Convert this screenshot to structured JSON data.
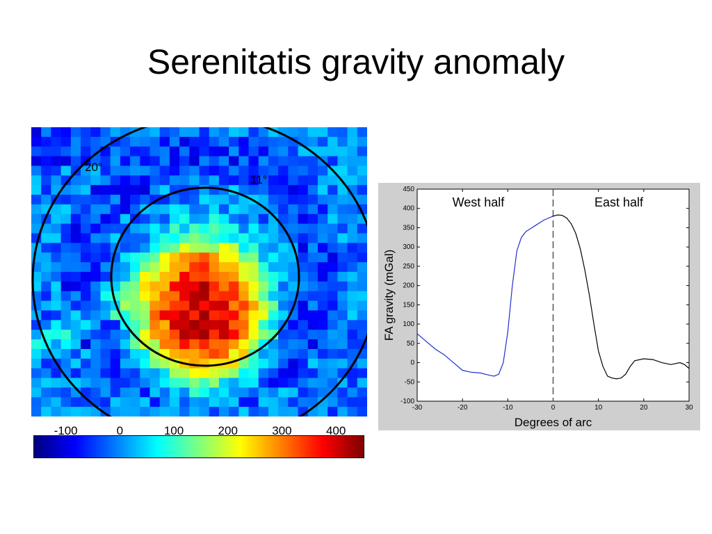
{
  "slide": {
    "title": "Serenitatis gravity anomaly"
  },
  "heatmap": {
    "ring_labels": {
      "ring20": "20°",
      "ring11": "11°"
    },
    "colorbar": {
      "ticks": [
        "-100",
        "0",
        "100",
        "200",
        "300",
        "400"
      ],
      "min": -160,
      "max": 450,
      "colors": [
        "#00007f",
        "#0000ff",
        "#007fff",
        "#00ffff",
        "#7fff7f",
        "#ffff00",
        "#ff7f00",
        "#ff0000",
        "#7f0000"
      ]
    }
  },
  "chart_data": [
    {
      "type": "heatmap",
      "title": "",
      "description_units": "mGal",
      "colorbar_ticks": [
        -100,
        0,
        100,
        200,
        300,
        400
      ],
      "rings_deg": [
        11,
        20
      ]
    },
    {
      "type": "line",
      "title": "",
      "xlabel": "Degrees of arc",
      "ylabel": "FA gravity (mGal)",
      "xlim": [
        -30,
        30
      ],
      "ylim": [
        -100,
        450
      ],
      "xticks": [
        -30,
        -20,
        -10,
        0,
        10,
        20,
        30
      ],
      "yticks": [
        -100,
        -50,
        0,
        50,
        100,
        150,
        200,
        250,
        300,
        350,
        400,
        450
      ],
      "annotations": [
        "West half",
        "East half"
      ],
      "series": [
        {
          "color": "#1f2fd0",
          "x": [
            -30,
            -28,
            -26,
            -24,
            -22,
            -20,
            -18,
            -16,
            -14,
            -13,
            -12,
            -11,
            -10,
            -9,
            -8,
            -7,
            -6,
            -4,
            -2,
            0
          ],
          "y": [
            75,
            55,
            35,
            20,
            0,
            -20,
            -25,
            -27,
            -33,
            -35,
            -30,
            0,
            80,
            200,
            290,
            325,
            340,
            355,
            370,
            380
          ]
        },
        {
          "color": "#000000",
          "x": [
            0,
            1,
            2,
            3,
            4,
            5,
            6,
            7,
            8,
            9,
            10,
            11,
            12,
            13,
            14,
            15,
            16,
            17,
            18,
            20,
            22,
            24,
            26,
            28,
            29,
            30
          ],
          "y": [
            380,
            383,
            382,
            375,
            360,
            335,
            295,
            240,
            175,
            100,
            30,
            -10,
            -35,
            -40,
            -42,
            -40,
            -30,
            -10,
            5,
            10,
            8,
            0,
            -5,
            0,
            -5,
            -15
          ]
        }
      ],
      "divider_x": 0
    }
  ]
}
